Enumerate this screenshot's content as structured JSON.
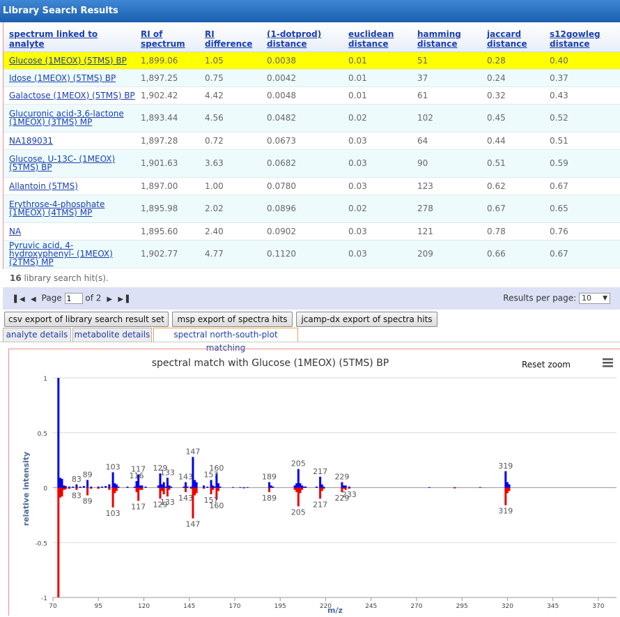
{
  "window": {
    "title": "Library Search Results"
  },
  "table": {
    "headers": [
      "spectrum linked to analyte",
      "RI of spectrum",
      "RI difference",
      "(1-dotprod) distance",
      "euclidean distance",
      "hamming distance",
      "jaccard distance",
      "s12gowleg distance"
    ],
    "rows": [
      [
        "Glucose (1MEOX) (5TMS) BP",
        "1,899.06",
        "1.05",
        "0.0038",
        "0.01",
        "51",
        "0.28",
        "0.40"
      ],
      [
        "Idose (1MEOX) (5TMS) BP",
        "1,897.25",
        "0.75",
        "0.0042",
        "0.01",
        "37",
        "0.24",
        "0.37"
      ],
      [
        "Galactose (1MEOX) (5TMS) BP",
        "1,902.42",
        "4.42",
        "0.0048",
        "0.01",
        "61",
        "0.32",
        "0.43"
      ],
      [
        "Glucuronic acid-3,6-lactone (1MEOX) (3TMS) MP",
        "1,893.44",
        "4.56",
        "0.0482",
        "0.02",
        "102",
        "0.45",
        "0.52"
      ],
      [
        "NA189031",
        "1,897.28",
        "0.72",
        "0.0673",
        "0.03",
        "64",
        "0.44",
        "0.51"
      ],
      [
        "Glucose, U-13C- (1MEOX) (5TMS) BP",
        "1,901.63",
        "3.63",
        "0.0682",
        "0.03",
        "90",
        "0.51",
        "0.59"
      ],
      [
        "Allantoin (5TMS)",
        "1,897.00",
        "1.00",
        "0.0780",
        "0.03",
        "123",
        "0.62",
        "0.67"
      ],
      [
        "Erythrose-4-phosphate (1MEOX) (4TMS) MP",
        "1,895.98",
        "2.02",
        "0.0896",
        "0.02",
        "278",
        "0.67",
        "0.65"
      ],
      [
        "NA",
        "1,895.60",
        "2.40",
        "0.0902",
        "0.03",
        "121",
        "0.78",
        "0.76"
      ],
      [
        "Pyruvic acid, 4-hydroxyphenyl- (1MEOX) (2TMS) MP",
        "1,902.77",
        "4.77",
        "0.1120",
        "0.03",
        "209",
        "0.66",
        "0.67"
      ]
    ],
    "hits_count": "16",
    "hits_text": "library search hit(s)."
  },
  "pager": {
    "page_label": "Page",
    "page_value": "1",
    "of_label": "of 2",
    "results_per_page_label": "Results per page:",
    "results_per_page_value": "10"
  },
  "buttons": {
    "csv": "csv export of library search result set",
    "msp": "msp export of spectra hits",
    "jcamp": "jcamp-dx export of spectra hits"
  },
  "tabs": [
    "analyte details",
    "metabolite details",
    "spectral north-south-plot matching"
  ],
  "chart_data": {
    "type": "bar",
    "title": "spectral match with Glucose (1MEOX) (5TMS) BP",
    "xlabel": "m/z",
    "ylabel": "relative intensity",
    "reset_zoom_label": "Reset zoom",
    "menu_icon": "hamburger-menu-icon",
    "xlim": [
      70,
      380
    ],
    "ylim": [
      -1,
      1
    ],
    "x_ticks": [
      70,
      95,
      120,
      145,
      170,
      195,
      220,
      245,
      270,
      295,
      320,
      345,
      370
    ],
    "y_ticks": [
      -1,
      -0.5,
      0,
      0.5,
      1
    ],
    "grid": true,
    "colors": {
      "analyte": "#0000ee",
      "library": "#ee0000",
      "grid": "#d8d8d8",
      "title": "#333333"
    },
    "series": [
      {
        "values": [
          [
            73,
            1.0
          ],
          [
            74,
            0.09
          ],
          [
            75,
            0.08
          ],
          [
            76,
            0.02
          ],
          [
            77,
            0.015
          ],
          [
            79,
            0.01
          ],
          [
            81,
            0.01
          ],
          [
            83,
            0.03
          ],
          [
            85,
            0.01
          ],
          [
            87,
            0.015
          ],
          [
            89,
            0.07
          ],
          [
            91,
            0.01
          ],
          [
            95,
            0.01
          ],
          [
            97,
            0.01
          ],
          [
            99,
            0.015
          ],
          [
            101,
            0.03
          ],
          [
            103,
            0.14
          ],
          [
            104,
            0.04
          ],
          [
            105,
            0.03
          ],
          [
            106,
            0.01
          ],
          [
            111,
            0.01
          ],
          [
            115,
            0.01
          ],
          [
            116,
            0.06
          ],
          [
            117,
            0.12
          ],
          [
            118,
            0.02
          ],
          [
            119,
            0.02
          ],
          [
            121,
            0.01
          ],
          [
            128,
            0.02
          ],
          [
            129,
            0.13
          ],
          [
            130,
            0.03
          ],
          [
            131,
            0.05
          ],
          [
            132,
            0.01
          ],
          [
            133,
            0.09
          ],
          [
            134,
            0.02
          ],
          [
            135,
            0.01
          ],
          [
            142,
            0.01
          ],
          [
            143,
            0.05
          ],
          [
            144,
            0.01
          ],
          [
            146,
            0.01
          ],
          [
            147,
            0.28
          ],
          [
            148,
            0.07
          ],
          [
            149,
            0.05
          ],
          [
            153,
            0.02
          ],
          [
            155,
            0.01
          ],
          [
            157,
            0.07
          ],
          [
            158,
            0.02
          ],
          [
            159,
            0.01
          ],
          [
            160,
            0.13
          ],
          [
            161,
            0.04
          ],
          [
            162,
            0.01
          ],
          [
            169,
            0.005
          ],
          [
            173,
            0.005
          ],
          [
            175,
            0.005
          ],
          [
            177,
            0.005
          ],
          [
            189,
            0.05
          ],
          [
            190,
            0.02
          ],
          [
            191,
            0.01
          ],
          [
            203,
            0.02
          ],
          [
            204,
            0.04
          ],
          [
            205,
            0.17
          ],
          [
            206,
            0.04
          ],
          [
            207,
            0.02
          ],
          [
            208,
            0.01
          ],
          [
            209,
            0.01
          ],
          [
            215,
            0.01
          ],
          [
            217,
            0.1
          ],
          [
            218,
            0.03
          ],
          [
            219,
            0.01
          ],
          [
            229,
            0.05
          ],
          [
            230,
            0.02
          ],
          [
            231,
            0.02
          ],
          [
            233,
            0.01
          ],
          [
            277,
            0.005
          ],
          [
            291,
            0.005
          ],
          [
            305,
            0.005
          ],
          [
            319,
            0.15
          ],
          [
            320,
            0.05
          ],
          [
            321,
            0.03
          ]
        ]
      },
      {
        "values": [
          [
            73,
            -1.0
          ],
          [
            74,
            -0.09
          ],
          [
            75,
            -0.08
          ],
          [
            76,
            -0.02
          ],
          [
            77,
            -0.015
          ],
          [
            79,
            -0.01
          ],
          [
            83,
            -0.02
          ],
          [
            89,
            -0.07
          ],
          [
            91,
            -0.01
          ],
          [
            95,
            -0.01
          ],
          [
            101,
            -0.02
          ],
          [
            103,
            -0.18
          ],
          [
            104,
            -0.05
          ],
          [
            105,
            -0.03
          ],
          [
            116,
            -0.04
          ],
          [
            117,
            -0.12
          ],
          [
            118,
            -0.02
          ],
          [
            119,
            -0.02
          ],
          [
            129,
            -0.1
          ],
          [
            130,
            -0.03
          ],
          [
            131,
            -0.06
          ],
          [
            133,
            -0.08
          ],
          [
            134,
            -0.02
          ],
          [
            143,
            -0.04
          ],
          [
            146,
            -0.01
          ],
          [
            147,
            -0.28
          ],
          [
            148,
            -0.07
          ],
          [
            149,
            -0.05
          ],
          [
            153,
            -0.01
          ],
          [
            157,
            -0.06
          ],
          [
            158,
            -0.02
          ],
          [
            160,
            -0.11
          ],
          [
            161,
            -0.03
          ],
          [
            175,
            -0.005
          ],
          [
            189,
            -0.04
          ],
          [
            203,
            -0.02
          ],
          [
            204,
            -0.04
          ],
          [
            205,
            -0.17
          ],
          [
            206,
            -0.05
          ],
          [
            207,
            -0.02
          ],
          [
            217,
            -0.1
          ],
          [
            218,
            -0.03
          ],
          [
            219,
            -0.01
          ],
          [
            229,
            -0.04
          ],
          [
            230,
            -0.01
          ],
          [
            231,
            -0.02
          ],
          [
            233,
            -0.01
          ],
          [
            291,
            -0.005
          ],
          [
            319,
            -0.16
          ],
          [
            320,
            -0.05
          ],
          [
            321,
            -0.03
          ]
        ]
      }
    ],
    "peak_labels_top": [
      83,
      89,
      103,
      116,
      117,
      129,
      133,
      143,
      147,
      157,
      160,
      189,
      205,
      217,
      229,
      319
    ],
    "peak_labels_bottom": [
      83,
      89,
      103,
      117,
      129,
      133,
      143,
      147,
      157,
      160,
      189,
      205,
      217,
      229,
      233,
      319
    ]
  }
}
